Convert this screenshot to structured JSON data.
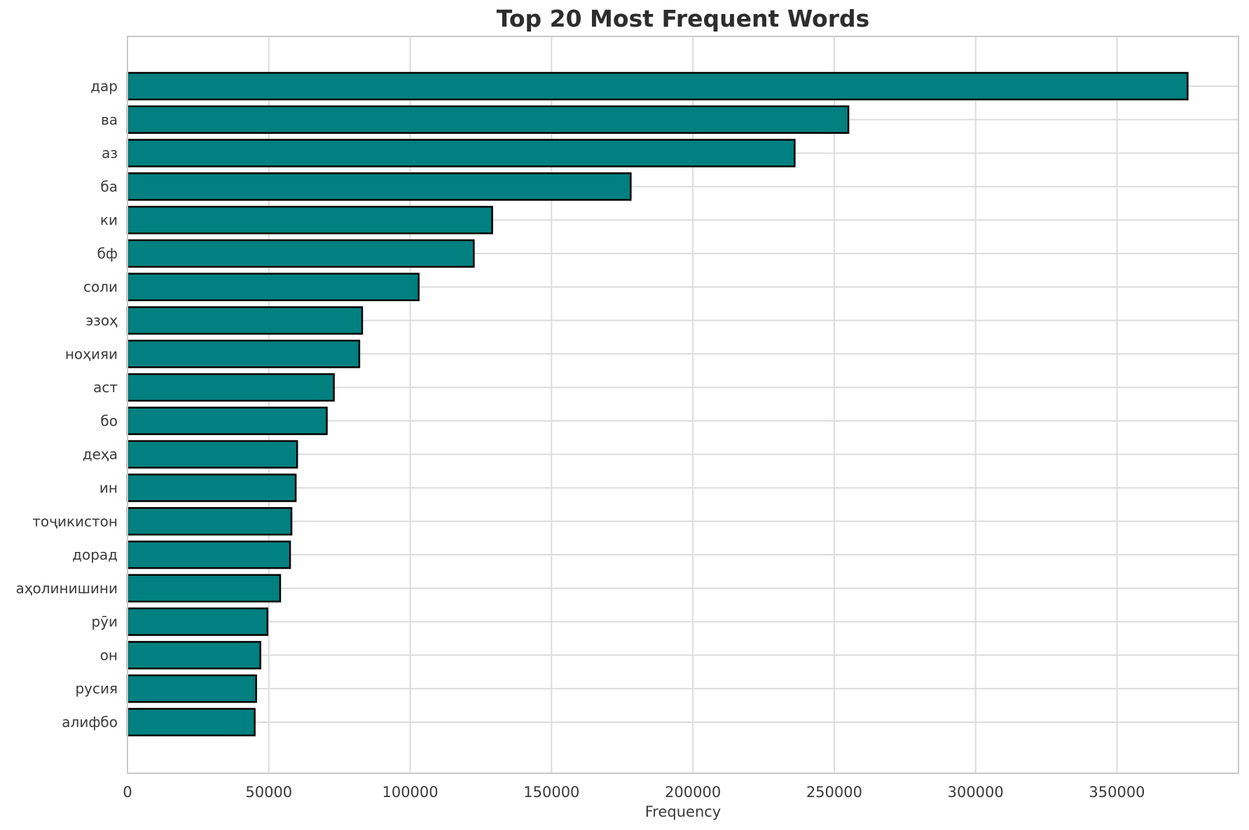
{
  "figure": {
    "title": "Top 20 Most Frequent Words",
    "xlabel": "Frequency"
  },
  "chart_data": {
    "type": "bar",
    "orientation": "horizontal",
    "title": "Top 20 Most Frequent Words",
    "xlabel": "Frequency",
    "ylabel": "",
    "categories": [
      "дар",
      "ва",
      "аз",
      "ба",
      "ки",
      "бф",
      "соли",
      "эзоҳ",
      "ноҳияи",
      "аст",
      "бо",
      "деҳа",
      "ин",
      "тоҷикистон",
      "дорад",
      "аҳолинишини",
      "рӯи",
      "он",
      "русия",
      "алифбо"
    ],
    "values": [
      375000,
      255000,
      236000,
      178000,
      129000,
      122500,
      103000,
      83000,
      82000,
      73000,
      70500,
      60000,
      59500,
      58000,
      57500,
      54000,
      49500,
      47000,
      45500,
      45000
    ],
    "xlim": [
      0,
      393000
    ],
    "xticks": [
      0,
      50000,
      100000,
      150000,
      200000,
      250000,
      300000,
      350000
    ],
    "grid": true,
    "legend_position": "none",
    "bar_color": "#008080",
    "bar_edge_color": "#000000",
    "grid_color": "#dcdcdc",
    "spine_color": "#c9c9c9",
    "background": "#ffffff"
  }
}
